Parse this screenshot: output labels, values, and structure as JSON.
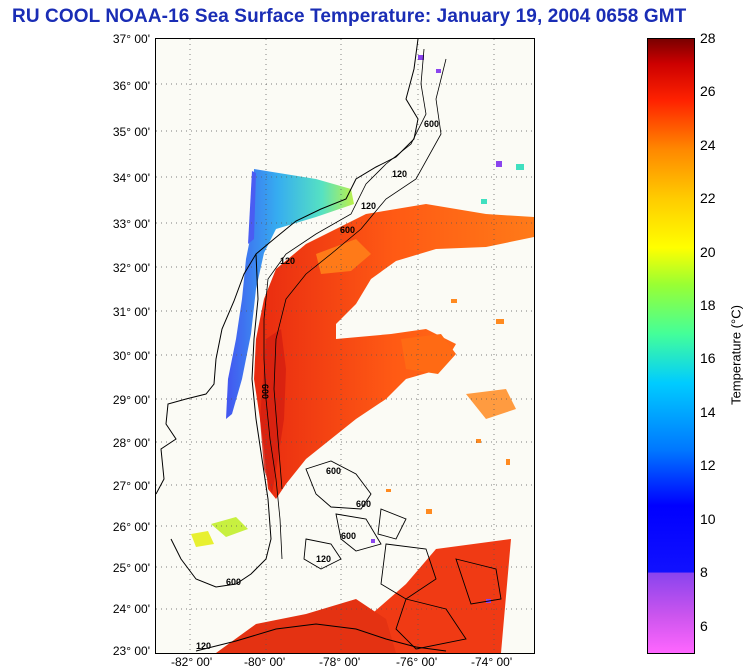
{
  "title": "RU COOL  NOAA-16  Sea Surface Temperature:  January 19, 2004 0658 GMT",
  "lat_ticks": [
    "37° 00'",
    "36° 00'",
    "35° 00'",
    "34° 00'",
    "33° 00'",
    "32° 00'",
    "31° 00'",
    "30° 00'",
    "29° 00'",
    "28° 00'",
    "27° 00'",
    "26° 00'",
    "25° 00'",
    "24° 00'",
    "23° 00'"
  ],
  "lon_ticks": [
    "-82° 00'",
    "-80° 00'",
    "-78° 00'",
    "-76° 00'",
    "-74° 00'"
  ],
  "colorbar": {
    "label": "Temperature (°C)",
    "ticks": [
      "28",
      "26",
      "24",
      "22",
      "20",
      "18",
      "16",
      "14",
      "12",
      "10",
      "8",
      "6"
    ],
    "range": [
      5,
      28
    ]
  },
  "isobath_labels": [
    "600",
    "120",
    "120",
    "600",
    "120",
    "600",
    "600",
    "600",
    "600",
    "120",
    "600",
    "120"
  ],
  "colors": {
    "title": "#1a2db5",
    "land": "#fbfbf5",
    "warm_sst": "#ff5010",
    "cool_sst": "#2b9cf0"
  }
}
